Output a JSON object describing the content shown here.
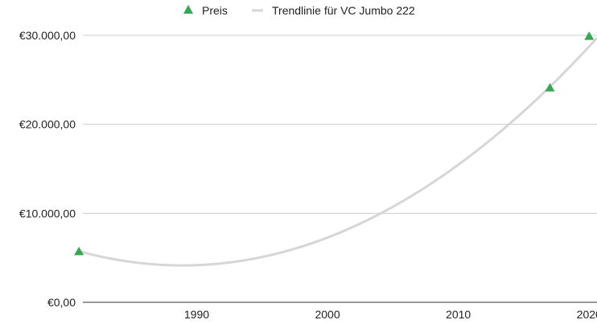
{
  "chart_data": {
    "type": "scatter",
    "legend": {
      "position": "top",
      "entries": [
        {
          "label": "Preis",
          "marker": "triangle",
          "color": "#34a853"
        },
        {
          "label": "Trendlinie für VC Jumbo 222",
          "marker": "line",
          "color": "#d6d6d6"
        }
      ]
    },
    "x_ticks": [
      1990,
      2000,
      2010,
      2020
    ],
    "x_tick_labels": [
      "1990",
      "2000",
      "2010",
      "2020"
    ],
    "y_ticks": [
      0,
      10000,
      20000,
      30000
    ],
    "y_tick_labels": [
      "€0,00",
      "€10.000,00",
      "€20.000,00",
      "€30.000,00"
    ],
    "xlim": [
      1981.3,
      2020.6
    ],
    "ylim": [
      0,
      30000
    ],
    "grid": true,
    "series": [
      {
        "name": "Preis",
        "type": "scatter",
        "marker": "triangle",
        "color": "#34a853",
        "points": [
          {
            "x": 1981,
            "y": 5700
          },
          {
            "x": 2017,
            "y": 24100
          },
          {
            "x": 2020,
            "y": 29900
          }
        ]
      },
      {
        "name": "Trendlinie für VC Jumbo 222",
        "type": "trendline-polynomial",
        "color": "#d6d6d6",
        "points": [
          {
            "x": 1981,
            "y": 5700
          },
          {
            "x": 1989,
            "y": 4200
          },
          {
            "x": 2004,
            "y": 10000
          },
          {
            "x": 2014,
            "y": 20000
          },
          {
            "x": 2020.6,
            "y": 29800
          }
        ]
      }
    ]
  }
}
